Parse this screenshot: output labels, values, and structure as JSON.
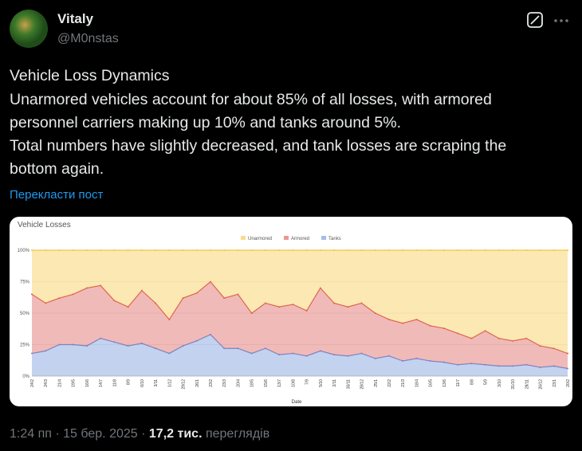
{
  "user": {
    "name": "Vitaly",
    "handle": "@M0nstas"
  },
  "text": [
    "Vehicle Loss Dynamics",
    "Unarmored vehicles account for about 85% of all losses, with armored",
    "personnel carriers making up 10% and tanks around 5%.",
    "Total numbers have slightly decreased, and tank losses are scraping the",
    "bottom again."
  ],
  "translate": "Перекласти пост",
  "footer": {
    "time": "1:24 пп",
    "separator": "·",
    "date": "15 бер. 2025",
    "views": "17,2 тис.",
    "views_label": "переглядів"
  },
  "chart_data": {
    "type": "area",
    "stacked": true,
    "title": "Vehicle Losses",
    "x_label": "Date",
    "categories": [
      "24/2",
      "24/3",
      "21/4",
      "19/5",
      "16/6",
      "14/7",
      "11/8",
      "8/9",
      "6/10",
      "3/11",
      "1/12",
      "29/12",
      "26/1",
      "23/2",
      "23/3",
      "20/4",
      "18/5",
      "15/6",
      "13/7",
      "10/8",
      "7/9",
      "5/10",
      "2/11",
      "30/11",
      "28/12",
      "25/1",
      "22/2",
      "21/3",
      "18/4",
      "16/5",
      "13/6",
      "11/7",
      "8/8",
      "5/9",
      "3/10",
      "31/10",
      "28/11",
      "26/12",
      "23/1",
      "20/2"
    ],
    "series": [
      {
        "name": "Tanks",
        "color": "#6a8fd8",
        "values": [
          18,
          20,
          25,
          25,
          24,
          30,
          27,
          24,
          26,
          22,
          18,
          24,
          28,
          33,
          22,
          22,
          18,
          22,
          17,
          18,
          16,
          20,
          17,
          16,
          18,
          14,
          16,
          12,
          14,
          12,
          11,
          9,
          10,
          9,
          8,
          8,
          9,
          7,
          8,
          6
        ]
      },
      {
        "name": "Armored",
        "color": "#d9534f",
        "values": [
          47,
          38,
          37,
          40,
          46,
          42,
          33,
          31,
          42,
          36,
          27,
          38,
          38,
          42,
          40,
          43,
          32,
          36,
          38,
          39,
          36,
          50,
          41,
          39,
          40,
          36,
          29,
          30,
          31,
          28,
          27,
          25,
          20,
          27,
          22,
          20,
          21,
          17,
          14,
          12
        ]
      },
      {
        "name": "Unarmored",
        "color": "#f5c542",
        "values": [
          35,
          42,
          38,
          35,
          30,
          28,
          40,
          45,
          32,
          42,
          55,
          38,
          34,
          25,
          38,
          35,
          50,
          42,
          45,
          43,
          48,
          30,
          42,
          45,
          42,
          50,
          55,
          58,
          55,
          60,
          62,
          66,
          70,
          64,
          70,
          72,
          70,
          76,
          78,
          82
        ]
      }
    ],
    "legend_order": [
      2,
      1,
      0
    ],
    "ylim": [
      0,
      100
    ],
    "yticks": [
      {
        "value": 0,
        "label": "0%"
      },
      {
        "value": 25,
        "label": "25%"
      },
      {
        "value": 50,
        "label": "50%"
      },
      {
        "value": 75,
        "label": "75%"
      },
      {
        "value": 100,
        "label": "100%"
      }
    ],
    "grid": true
  }
}
